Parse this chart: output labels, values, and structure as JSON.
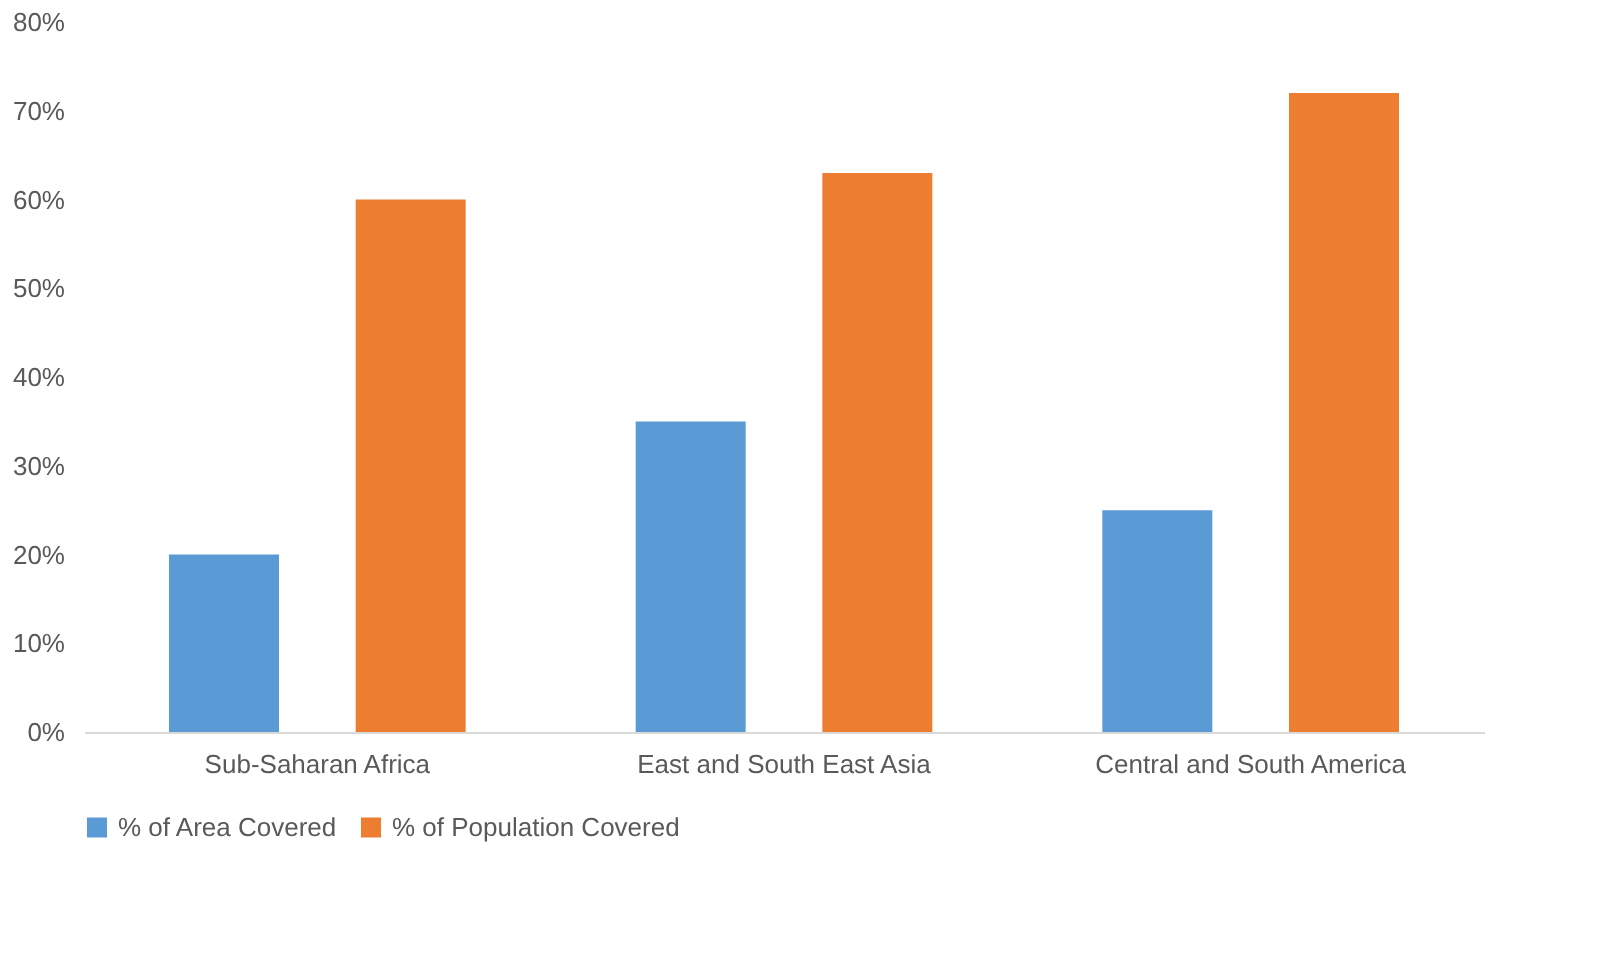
{
  "chart_data": {
    "type": "bar",
    "categories": [
      "Sub-Saharan Africa",
      "East and South East Asia",
      "Central and South America"
    ],
    "series": [
      {
        "name": "% of Area Covered",
        "color": "#5b9bd5",
        "values": [
          20,
          35,
          25
        ]
      },
      {
        "name": "% of Population Covered",
        "color": "#ed7d31",
        "values": [
          60,
          63,
          72
        ]
      }
    ],
    "ylim": [
      0,
      80
    ],
    "yticks": [
      {
        "value": 0,
        "label": "0%"
      },
      {
        "value": 10,
        "label": "10%"
      },
      {
        "value": 20,
        "label": "20%"
      },
      {
        "value": 30,
        "label": "30%"
      },
      {
        "value": 40,
        "label": "40%"
      },
      {
        "value": 50,
        "label": "50%"
      },
      {
        "value": 60,
        "label": "60%"
      },
      {
        "value": 70,
        "label": "70%"
      },
      {
        "value": 80,
        "label": "80%"
      }
    ],
    "grid": false,
    "legend": "bottom"
  }
}
